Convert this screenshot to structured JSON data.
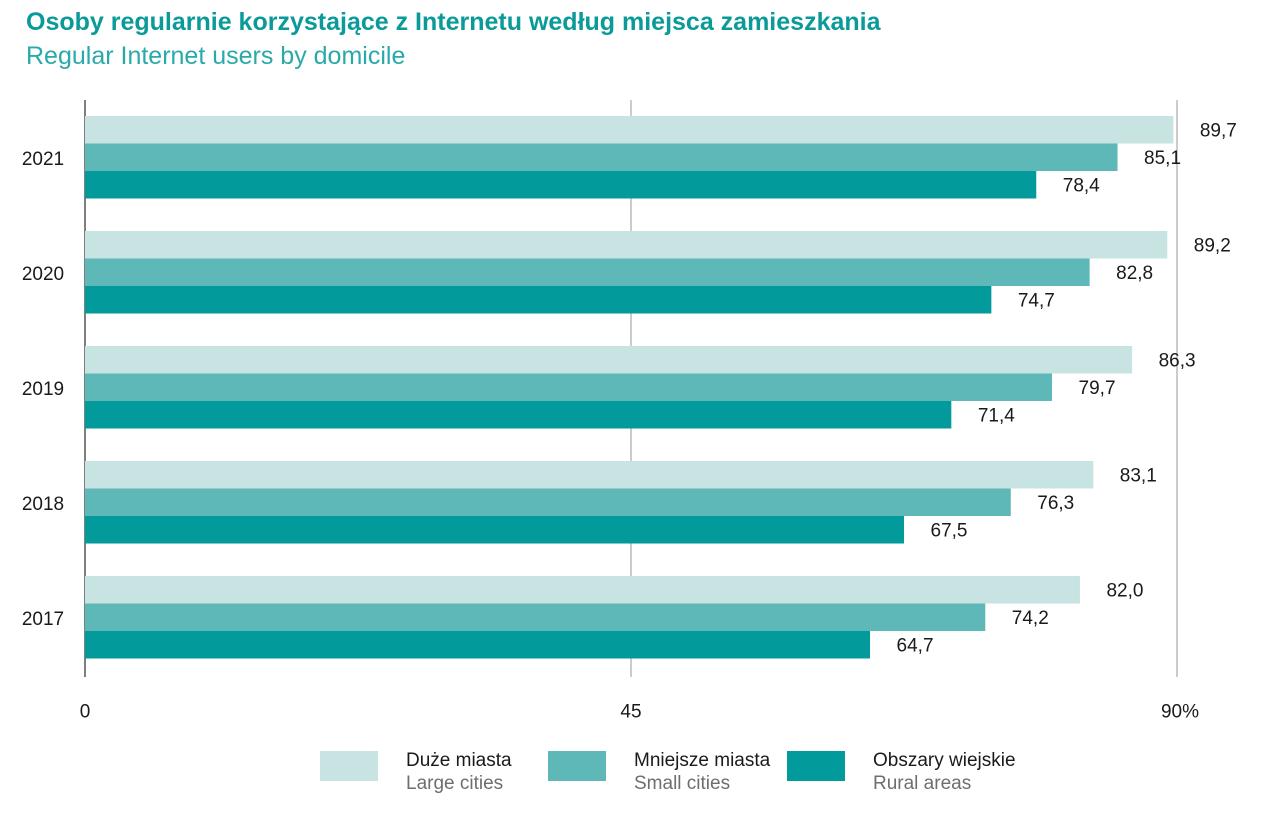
{
  "header": {
    "title": "Osoby regularnie korzystające z Internetu według miejsca zamieszkania",
    "subtitle": "Regular Internet users by domicile"
  },
  "chart_data": {
    "type": "bar",
    "orientation": "horizontal",
    "categories": [
      "2021",
      "2020",
      "2019",
      "2018",
      "2017"
    ],
    "series": [
      {
        "name": "Duże miasta",
        "name_en": "Large cities",
        "color": "#c7e4e2",
        "values": [
          89.7,
          89.2,
          86.3,
          83.1,
          82.0
        ],
        "labels": [
          "89,7",
          "89,2",
          "86,3",
          "83,1",
          "82,0"
        ]
      },
      {
        "name": "Mniejsze miasta",
        "name_en": "Small cities",
        "color": "#5fb8b8",
        "values": [
          85.1,
          82.8,
          79.7,
          76.3,
          74.2
        ],
        "labels": [
          "85,1",
          "82,8",
          "79,7",
          "76,3",
          "74,2"
        ]
      },
      {
        "name": "Obszary wiejskie",
        "name_en": "Rural areas",
        "color": "#029a9b",
        "values": [
          78.4,
          74.7,
          71.4,
          67.5,
          64.7
        ],
        "labels": [
          "78,4",
          "74,7",
          "71,4",
          "67,5",
          "64,7"
        ]
      }
    ],
    "xlim": [
      0,
      90
    ],
    "xticks": [
      0,
      45,
      90
    ],
    "xtick_labels": [
      "0",
      "45",
      "90%"
    ],
    "grid": true,
    "legend_position": "bottom"
  }
}
